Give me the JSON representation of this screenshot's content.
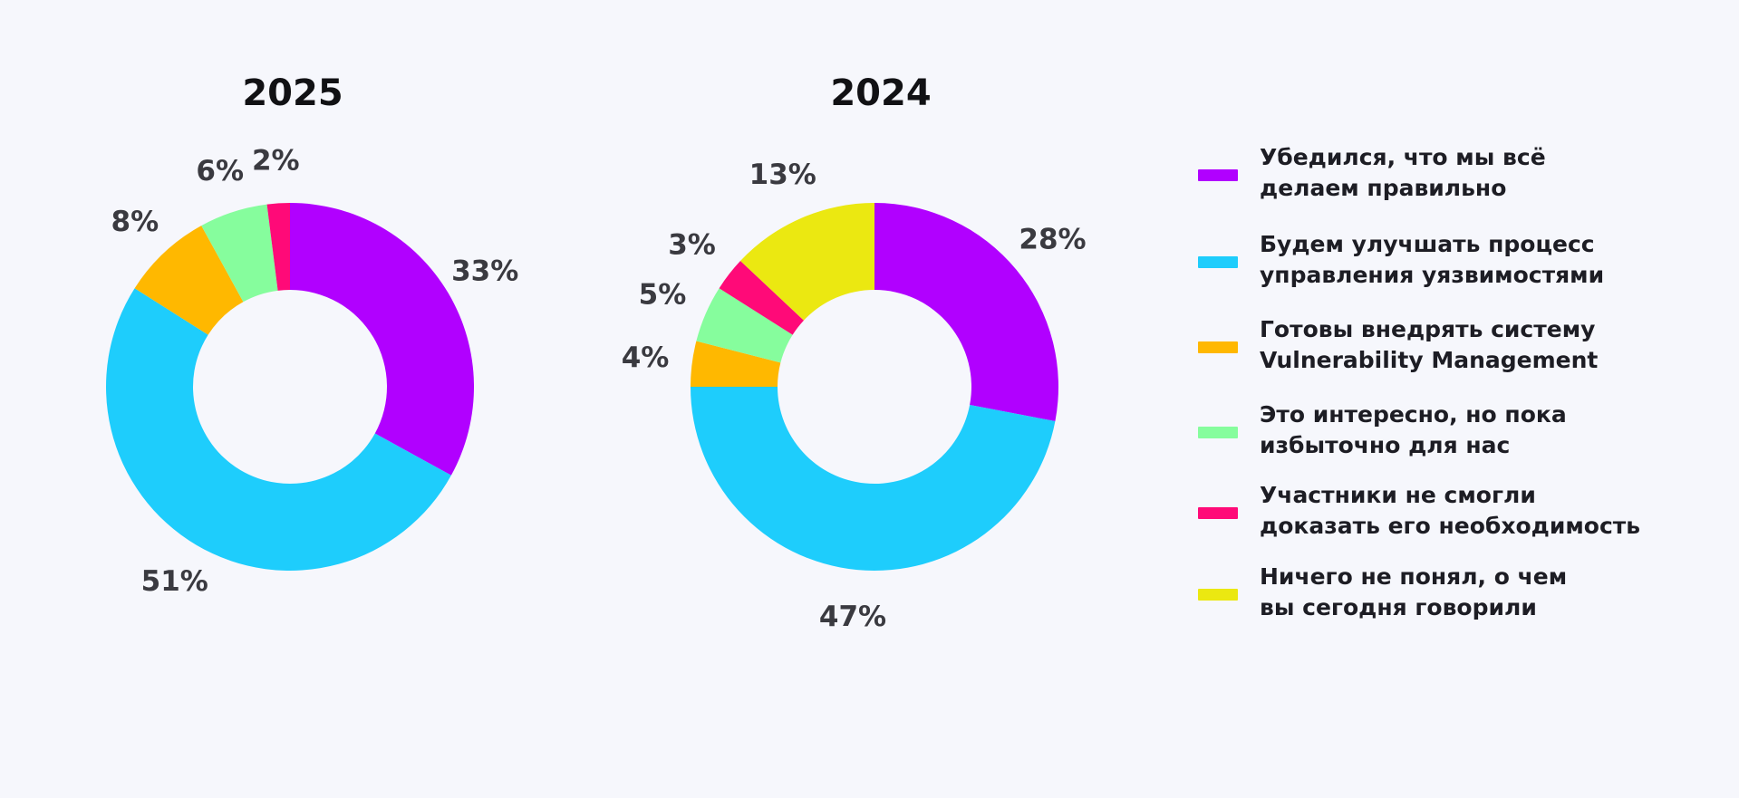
{
  "chart_data": [
    {
      "type": "pie",
      "donut": true,
      "title": "2025",
      "categories": [
        "Убедился, что мы всё делаем правильно",
        "Будем улучшать процесс управления уязвимостями",
        "Готовы внедрять систему Vulnerability Management",
        "Это интересно, но пока избыточно для нас",
        "Участники не смогли доказать его необходимость"
      ],
      "values": [
        33,
        51,
        8,
        6,
        2
      ],
      "labels": [
        "33%",
        "51%",
        "8%",
        "6%",
        "2%"
      ],
      "colors": [
        "#b100ff",
        "#1ecdfc",
        "#ffb800",
        "#86fd9d",
        "#ff0a78"
      ]
    },
    {
      "type": "pie",
      "donut": true,
      "title": "2024",
      "categories": [
        "Убедился, что мы всё делаем правильно",
        "Будем улучшать процесс управления уязвимостями",
        "Готовы внедрять систему Vulnerability Management",
        "Это интересно, но пока избыточно для нас",
        "Участники не смогли доказать его необходимость",
        "Ничего не понял, о чем вы сегодня говорили"
      ],
      "values": [
        28,
        47,
        4,
        5,
        3,
        13
      ],
      "labels": [
        "28%",
        "47%",
        "4%",
        "5%",
        "3%",
        "13%"
      ],
      "colors": [
        "#b100ff",
        "#1ecdfc",
        "#ffb800",
        "#86fd9d",
        "#ff0a78",
        "#ebe811"
      ]
    }
  ],
  "legend": {
    "placement": "right",
    "items": [
      {
        "lines": [
          "Убедился, что мы всё",
          "делаем правильно"
        ],
        "color": "#b100ff"
      },
      {
        "lines": [
          "Будем улучшать процесс",
          "управления уязвимостями"
        ],
        "color": "#1ecdfc"
      },
      {
        "lines": [
          "Готовы внедрять систему",
          "Vulnerability Management"
        ],
        "color": "#ffb800"
      },
      {
        "lines": [
          "Это интересно, но пока",
          "избыточно для нас"
        ],
        "color": "#86fd9d"
      },
      {
        "lines": [
          "Участники не смогли",
          "доказать его необходимость"
        ],
        "color": "#ff0a78"
      },
      {
        "lines": [
          "Ничего не понял, о чем",
          "вы сегодня говорили"
        ],
        "color": "#ebe811"
      }
    ]
  }
}
